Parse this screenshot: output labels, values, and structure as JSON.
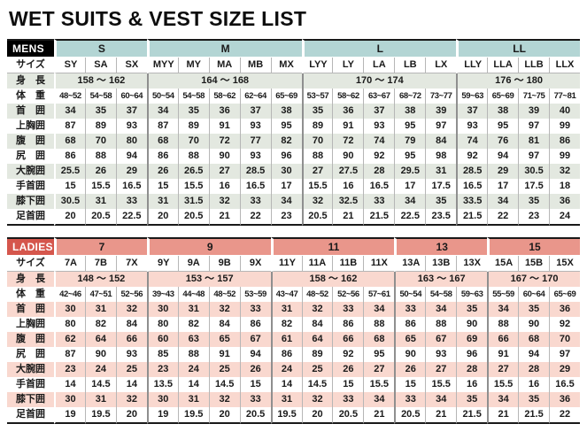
{
  "title": "WET SUITS & VEST SIZE LIST",
  "shared": {
    "size_label": "サイズ",
    "height_label": "身　長",
    "weight_label": "体　重",
    "measurement_labels": [
      "首　囲",
      "上胸囲",
      "腹　囲",
      "尻　囲",
      "大腕囲",
      "手首囲",
      "膝下囲",
      "足首囲"
    ]
  },
  "tables": [
    {
      "id": "mens",
      "label": "MENS",
      "theme": {
        "header_bg": "#000000",
        "header_fg": "#ffffff",
        "group_bg": "#b3d5d4",
        "band_bg": "#e3e8e0"
      },
      "groups": [
        {
          "name": "S",
          "span": 3,
          "height": "158 〜 162"
        },
        {
          "name": "M",
          "span": 5,
          "height": "164 〜 168"
        },
        {
          "name": "L",
          "span": 5,
          "height": "170 〜 174"
        },
        {
          "name": "LL",
          "span": 4,
          "height": "176 〜 180"
        }
      ],
      "sizes": [
        "SY",
        "SA",
        "SX",
        "MYY",
        "MY",
        "MA",
        "MB",
        "MX",
        "LYY",
        "LY",
        "LA",
        "LB",
        "LX",
        "LLY",
        "LLA",
        "LLB",
        "LLX"
      ],
      "weights": [
        "48~52",
        "54~58",
        "60~64",
        "50~54",
        "54~58",
        "58~62",
        "62~64",
        "65~69",
        "53~57",
        "58~62",
        "63~67",
        "68~72",
        "73~77",
        "59~63",
        "65~69",
        "71~75",
        "77~81"
      ],
      "measurements": [
        [
          "34",
          "35",
          "37",
          "34",
          "35",
          "36",
          "37",
          "38",
          "35",
          "36",
          "37",
          "38",
          "39",
          "37",
          "38",
          "39",
          "40"
        ],
        [
          "87",
          "89",
          "93",
          "87",
          "89",
          "91",
          "93",
          "95",
          "89",
          "91",
          "93",
          "95",
          "97",
          "93",
          "95",
          "97",
          "99"
        ],
        [
          "68",
          "70",
          "80",
          "68",
          "70",
          "72",
          "77",
          "82",
          "70",
          "72",
          "74",
          "79",
          "84",
          "74",
          "76",
          "81",
          "86"
        ],
        [
          "86",
          "88",
          "94",
          "86",
          "88",
          "90",
          "93",
          "96",
          "88",
          "90",
          "92",
          "95",
          "98",
          "92",
          "94",
          "97",
          "99"
        ],
        [
          "25.5",
          "26",
          "29",
          "26",
          "26.5",
          "27",
          "28.5",
          "30",
          "27",
          "27.5",
          "28",
          "29.5",
          "31",
          "28.5",
          "29",
          "30.5",
          "32"
        ],
        [
          "15",
          "15.5",
          "16.5",
          "15",
          "15.5",
          "16",
          "16.5",
          "17",
          "15.5",
          "16",
          "16.5",
          "17",
          "17.5",
          "16.5",
          "17",
          "17.5",
          "18"
        ],
        [
          "30.5",
          "31",
          "33",
          "31",
          "31.5",
          "32",
          "33",
          "34",
          "32",
          "32.5",
          "33",
          "34",
          "35",
          "33.5",
          "34",
          "35",
          "36"
        ],
        [
          "20",
          "20.5",
          "22.5",
          "20",
          "20.5",
          "21",
          "22",
          "23",
          "20.5",
          "21",
          "21.5",
          "22.5",
          "23.5",
          "21.5",
          "22",
          "23",
          "24"
        ]
      ]
    },
    {
      "id": "ladies",
      "label": "LADIES",
      "theme": {
        "header_bg": "#d5564c",
        "header_fg": "#ffffff",
        "group_bg": "#e9968b",
        "band_bg": "#f9d8cf"
      },
      "groups": [
        {
          "name": "7",
          "span": 3,
          "height": "148 〜 152"
        },
        {
          "name": "9",
          "span": 4,
          "height": "153 〜 157"
        },
        {
          "name": "11",
          "span": 4,
          "height": "158 〜 162"
        },
        {
          "name": "13",
          "span": 3,
          "height": "163 〜 167"
        },
        {
          "name": "15",
          "span": 3,
          "height": "167 〜 170"
        }
      ],
      "sizes": [
        "7A",
        "7B",
        "7X",
        "9Y",
        "9A",
        "9B",
        "9X",
        "11Y",
        "11A",
        "11B",
        "11X",
        "13A",
        "13B",
        "13X",
        "15A",
        "15B",
        "15X"
      ],
      "weights": [
        "42~46",
        "47~51",
        "52~56",
        "39~43",
        "44~48",
        "48~52",
        "53~59",
        "43~47",
        "48~52",
        "52~56",
        "57~61",
        "50~54",
        "54~58",
        "59~63",
        "55~59",
        "60~64",
        "65~69"
      ],
      "measurements": [
        [
          "30",
          "31",
          "32",
          "30",
          "31",
          "32",
          "33",
          "31",
          "32",
          "33",
          "34",
          "33",
          "34",
          "35",
          "34",
          "35",
          "36"
        ],
        [
          "80",
          "82",
          "84",
          "80",
          "82",
          "84",
          "86",
          "82",
          "84",
          "86",
          "88",
          "86",
          "88",
          "90",
          "88",
          "90",
          "92"
        ],
        [
          "62",
          "64",
          "66",
          "60",
          "63",
          "65",
          "67",
          "61",
          "64",
          "66",
          "68",
          "65",
          "67",
          "69",
          "66",
          "68",
          "70"
        ],
        [
          "87",
          "90",
          "93",
          "85",
          "88",
          "91",
          "94",
          "86",
          "89",
          "92",
          "95",
          "90",
          "93",
          "96",
          "91",
          "94",
          "97"
        ],
        [
          "23",
          "24",
          "25",
          "23",
          "24",
          "25",
          "26",
          "24",
          "25",
          "26",
          "27",
          "26",
          "27",
          "28",
          "27",
          "28",
          "29"
        ],
        [
          "14",
          "14.5",
          "14",
          "13.5",
          "14",
          "14.5",
          "15",
          "14",
          "14.5",
          "15",
          "15.5",
          "15",
          "15.5",
          "16",
          "15.5",
          "16",
          "16.5"
        ],
        [
          "30",
          "31",
          "32",
          "30",
          "31",
          "32",
          "33",
          "31",
          "32",
          "33",
          "34",
          "33",
          "34",
          "35",
          "34",
          "35",
          "36"
        ],
        [
          "19",
          "19.5",
          "20",
          "19",
          "19.5",
          "20",
          "20.5",
          "19.5",
          "20",
          "20.5",
          "21",
          "20.5",
          "21",
          "21.5",
          "21",
          "21.5",
          "22"
        ]
      ]
    }
  ]
}
